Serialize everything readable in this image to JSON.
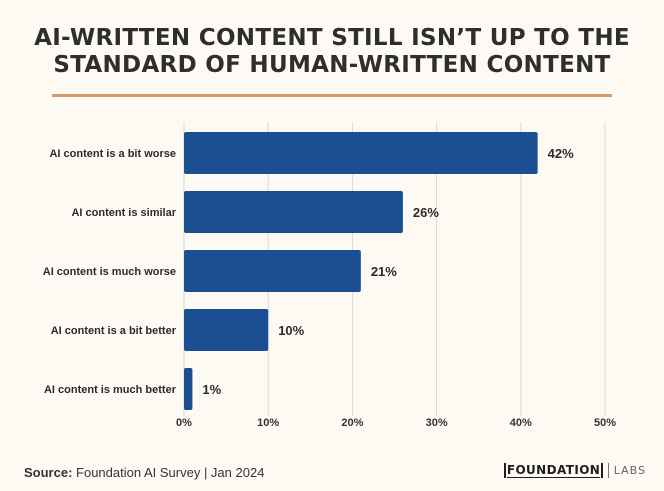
{
  "title": "AI-WRITTEN CONTENT STILL ISN’T UP TO THE STANDARD OF HUMAN-WRITTEN CONTENT",
  "chart_data": {
    "type": "bar",
    "orientation": "horizontal",
    "categories": [
      "AI content is a bit worse",
      "AI content is similar",
      "AI content is much worse",
      "AI content is a bit better",
      "AI content is much better"
    ],
    "values": [
      42,
      26,
      21,
      10,
      1
    ],
    "value_labels": [
      "42%",
      "26%",
      "21%",
      "10%",
      "1%"
    ],
    "xlim": [
      0,
      50
    ],
    "xticks": [
      0,
      10,
      20,
      30,
      40,
      50
    ],
    "xtick_labels": [
      "0%",
      "10%",
      "20%",
      "30%",
      "40%",
      "50%"
    ],
    "grid": "vertical",
    "bar_color": "#1b4f91"
  },
  "footer": {
    "source_label": "Source:",
    "source_text": "Foundation AI Survey | Jan 2024"
  },
  "logo": {
    "brand": "FOUNDATION",
    "suffix": "LABS"
  },
  "colors": {
    "background": "#fdfaf4",
    "accent_rule": "#d49a6a",
    "bar": "#1b4f91",
    "grid": "#dcd8d0"
  }
}
